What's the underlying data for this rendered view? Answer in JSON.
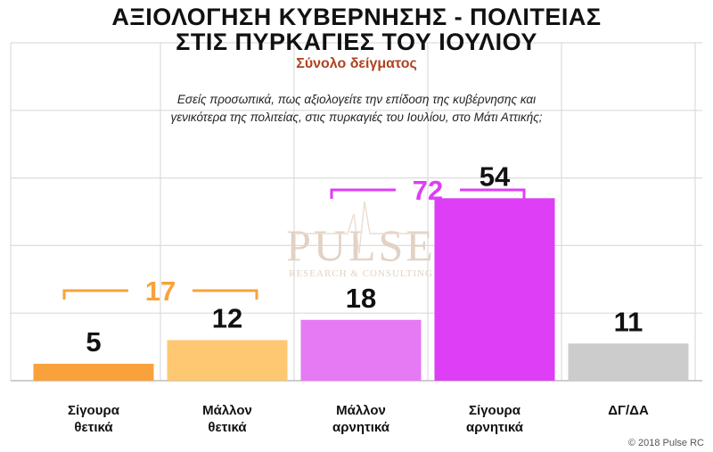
{
  "title_line1": "ΑΞΙΟΛΟΓΗΣΗ ΚΥΒΕΡΝΗΣΗΣ - ΠΟΛΙΤΕΙΑΣ",
  "title_line2": "ΣΤΙΣ ΠΥΡΚΑΓΙΕΣ ΤΟΥ ΙΟΥΛΙΟΥ",
  "subtitle": "Σύνολο δείγματος",
  "question_line1": "Εσείς προσωπικά, πως αξιολογείτε την επίδοση της κυβέρνησης και",
  "question_line2": "γενικότερα της πολιτείας, στις πυρκαγιές του Ιουλίου, στο Μάτι Αττικής;",
  "watermark_main": "PULSE",
  "watermark_sub": "RESEARCH & CONSULTING",
  "copyright": "© 2018 Pulse RC",
  "chart_data": {
    "type": "bar",
    "title": "ΑΞΙΟΛΟΓΗΣΗ ΚΥΒΕΡΝΗΣΗΣ - ΠΟΛΙΤΕΙΑΣ ΣΤΙΣ ΠΥΡΚΑΓΙΕΣ ΤΟΥ ΙΟΥΛΙΟΥ",
    "categories": [
      [
        "Σίγουρα",
        "θετικά"
      ],
      [
        "Μάλλον",
        "θετικά"
      ],
      [
        "Μάλλον",
        "αρνητικά"
      ],
      [
        "Σίγουρα",
        "αρνητικά"
      ],
      [
        "ΔΓ/ΔΑ"
      ]
    ],
    "values": [
      5,
      12,
      18,
      54,
      11
    ],
    "colors": [
      "#f9a23b",
      "#fdc871",
      "#e57af4",
      "#dd3ef6",
      "#cccccc"
    ],
    "ylim": [
      0,
      100
    ],
    "grid": true,
    "groups": [
      {
        "label": "17",
        "from": 0,
        "to": 1,
        "value": 17,
        "color": "#f9a23b"
      },
      {
        "label": "72",
        "from": 2,
        "to": 3,
        "value": 72,
        "color": "#dd3ef6"
      }
    ]
  }
}
